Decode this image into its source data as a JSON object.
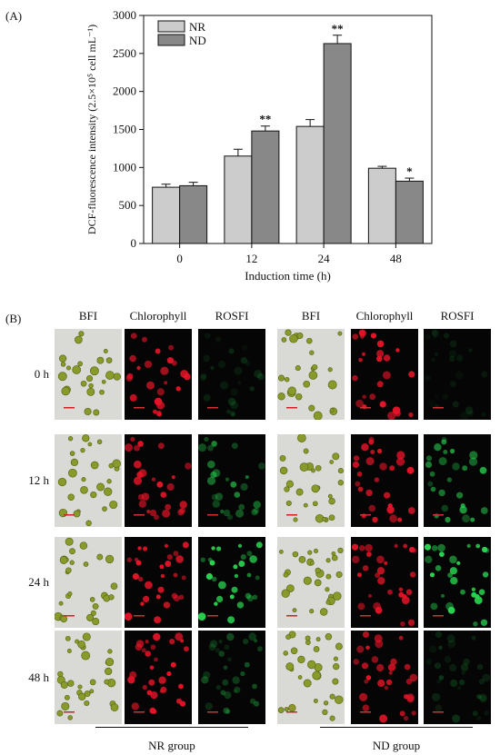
{
  "panel_a_label": "(A)",
  "panel_b_label": "(B)",
  "chart_data": {
    "type": "bar",
    "title": "",
    "xlabel": "Induction time (h)",
    "ylabel": "DCF-fluorescence intensity (2.5×10⁵ cell mL⁻¹)",
    "categories": [
      "0",
      "12",
      "24",
      "48"
    ],
    "ylim": [
      0,
      3000
    ],
    "yticks": [
      0,
      500,
      1000,
      1500,
      2000,
      2500,
      3000
    ],
    "series": [
      {
        "name": "NR",
        "color": "#cccccc",
        "values": [
          740,
          1150,
          1540,
          990
        ],
        "errors": [
          40,
          90,
          90,
          25
        ]
      },
      {
        "name": "ND",
        "color": "#888888",
        "values": [
          760,
          1480,
          2630,
          820
        ],
        "errors": [
          45,
          65,
          110,
          40
        ]
      }
    ],
    "annotations": [
      {
        "series": "ND",
        "category": "12",
        "text": "**"
      },
      {
        "series": "ND",
        "category": "24",
        "text": "**"
      },
      {
        "series": "ND",
        "category": "48",
        "text": "*"
      }
    ],
    "legend_position": "top-left",
    "grid": false
  },
  "panel_b": {
    "column_headers": [
      "BFI",
      "Chlorophyll",
      "ROSFI",
      "BFI",
      "Chlorophyll",
      "ROSFI"
    ],
    "row_headers": [
      "0 h",
      "12 h",
      "24 h",
      "48 h"
    ],
    "group_labels": [
      "NR group",
      "ND group"
    ],
    "image_types": [
      "brightfield",
      "chlorophyll-red",
      "ros-green"
    ],
    "green_intensity": [
      [
        0.15,
        0.55,
        0.85,
        0.3
      ],
      [
        0.1,
        0.65,
        1.0,
        0.2
      ]
    ]
  }
}
